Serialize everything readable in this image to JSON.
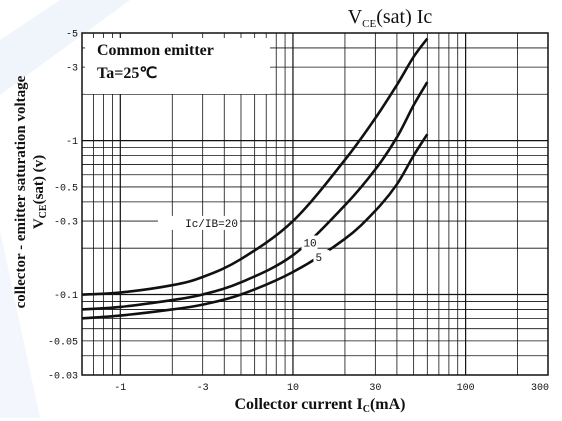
{
  "title": {
    "main": "V",
    "sub": "CE",
    "rest": "(sat) Ic"
  },
  "legend_box": {
    "line1": "Common emitter",
    "line2": "Ta=25℃"
  },
  "axes": {
    "ylabel_main": "collector - emitter saturation voltage",
    "ylabel_v": "V",
    "ylabel_sub": "CE",
    "ylabel_rest": "(sat) (v)",
    "xlabel_main": "Collector current I",
    "xlabel_sub": "C",
    "xlabel_rest": "(mA)"
  },
  "chart_data": {
    "type": "line",
    "title": "VCE(sat) Ic",
    "xlabel": "Collector current IC(mA)",
    "ylabel": "collector - emitter saturation voltage VCE(sat) (v)",
    "xscale": "log",
    "yscale": "log",
    "xlim": [
      0.6,
      300
    ],
    "ylim": [
      0.03,
      5
    ],
    "xticks": [
      {
        "v": 1,
        "t": "1"
      },
      {
        "v": 3,
        "t": "3"
      },
      {
        "v": 10,
        "t": "10"
      },
      {
        "v": 30,
        "t": "30"
      },
      {
        "v": 100,
        "t": "100"
      },
      {
        "v": 300,
        "t": "300"
      }
    ],
    "yticks": [
      {
        "v": 5,
        "t": "5"
      },
      {
        "v": 3,
        "t": "3"
      },
      {
        "v": 1,
        "t": "1"
      },
      {
        "v": 0.5,
        "t": "0.5"
      },
      {
        "v": 0.3,
        "t": "0.3"
      },
      {
        "v": 0.1,
        "t": "0.1"
      },
      {
        "v": 0.05,
        "t": "0.05"
      },
      {
        "v": 0.03,
        "t": "0.03"
      }
    ],
    "grid": true,
    "series": [
      {
        "name": "Ic/IB=20",
        "points": [
          [
            0.6,
            0.1
          ],
          [
            1,
            0.103
          ],
          [
            2,
            0.115
          ],
          [
            3,
            0.13
          ],
          [
            5,
            0.17
          ],
          [
            10,
            0.3
          ],
          [
            20,
            0.75
          ],
          [
            30,
            1.4
          ],
          [
            40,
            2.3
          ],
          [
            50,
            3.5
          ],
          [
            60,
            4.6
          ]
        ]
      },
      {
        "name": "10",
        "points": [
          [
            0.6,
            0.08
          ],
          [
            1,
            0.083
          ],
          [
            2,
            0.092
          ],
          [
            3,
            0.1
          ],
          [
            5,
            0.12
          ],
          [
            10,
            0.18
          ],
          [
            20,
            0.38
          ],
          [
            30,
            0.65
          ],
          [
            40,
            1.05
          ],
          [
            50,
            1.7
          ],
          [
            60,
            2.4
          ]
        ]
      },
      {
        "name": "5",
        "points": [
          [
            0.6,
            0.07
          ],
          [
            1,
            0.073
          ],
          [
            2,
            0.08
          ],
          [
            3,
            0.086
          ],
          [
            5,
            0.1
          ],
          [
            10,
            0.14
          ],
          [
            20,
            0.23
          ],
          [
            30,
            0.35
          ],
          [
            40,
            0.52
          ],
          [
            50,
            0.8
          ],
          [
            60,
            1.1
          ]
        ]
      }
    ]
  }
}
